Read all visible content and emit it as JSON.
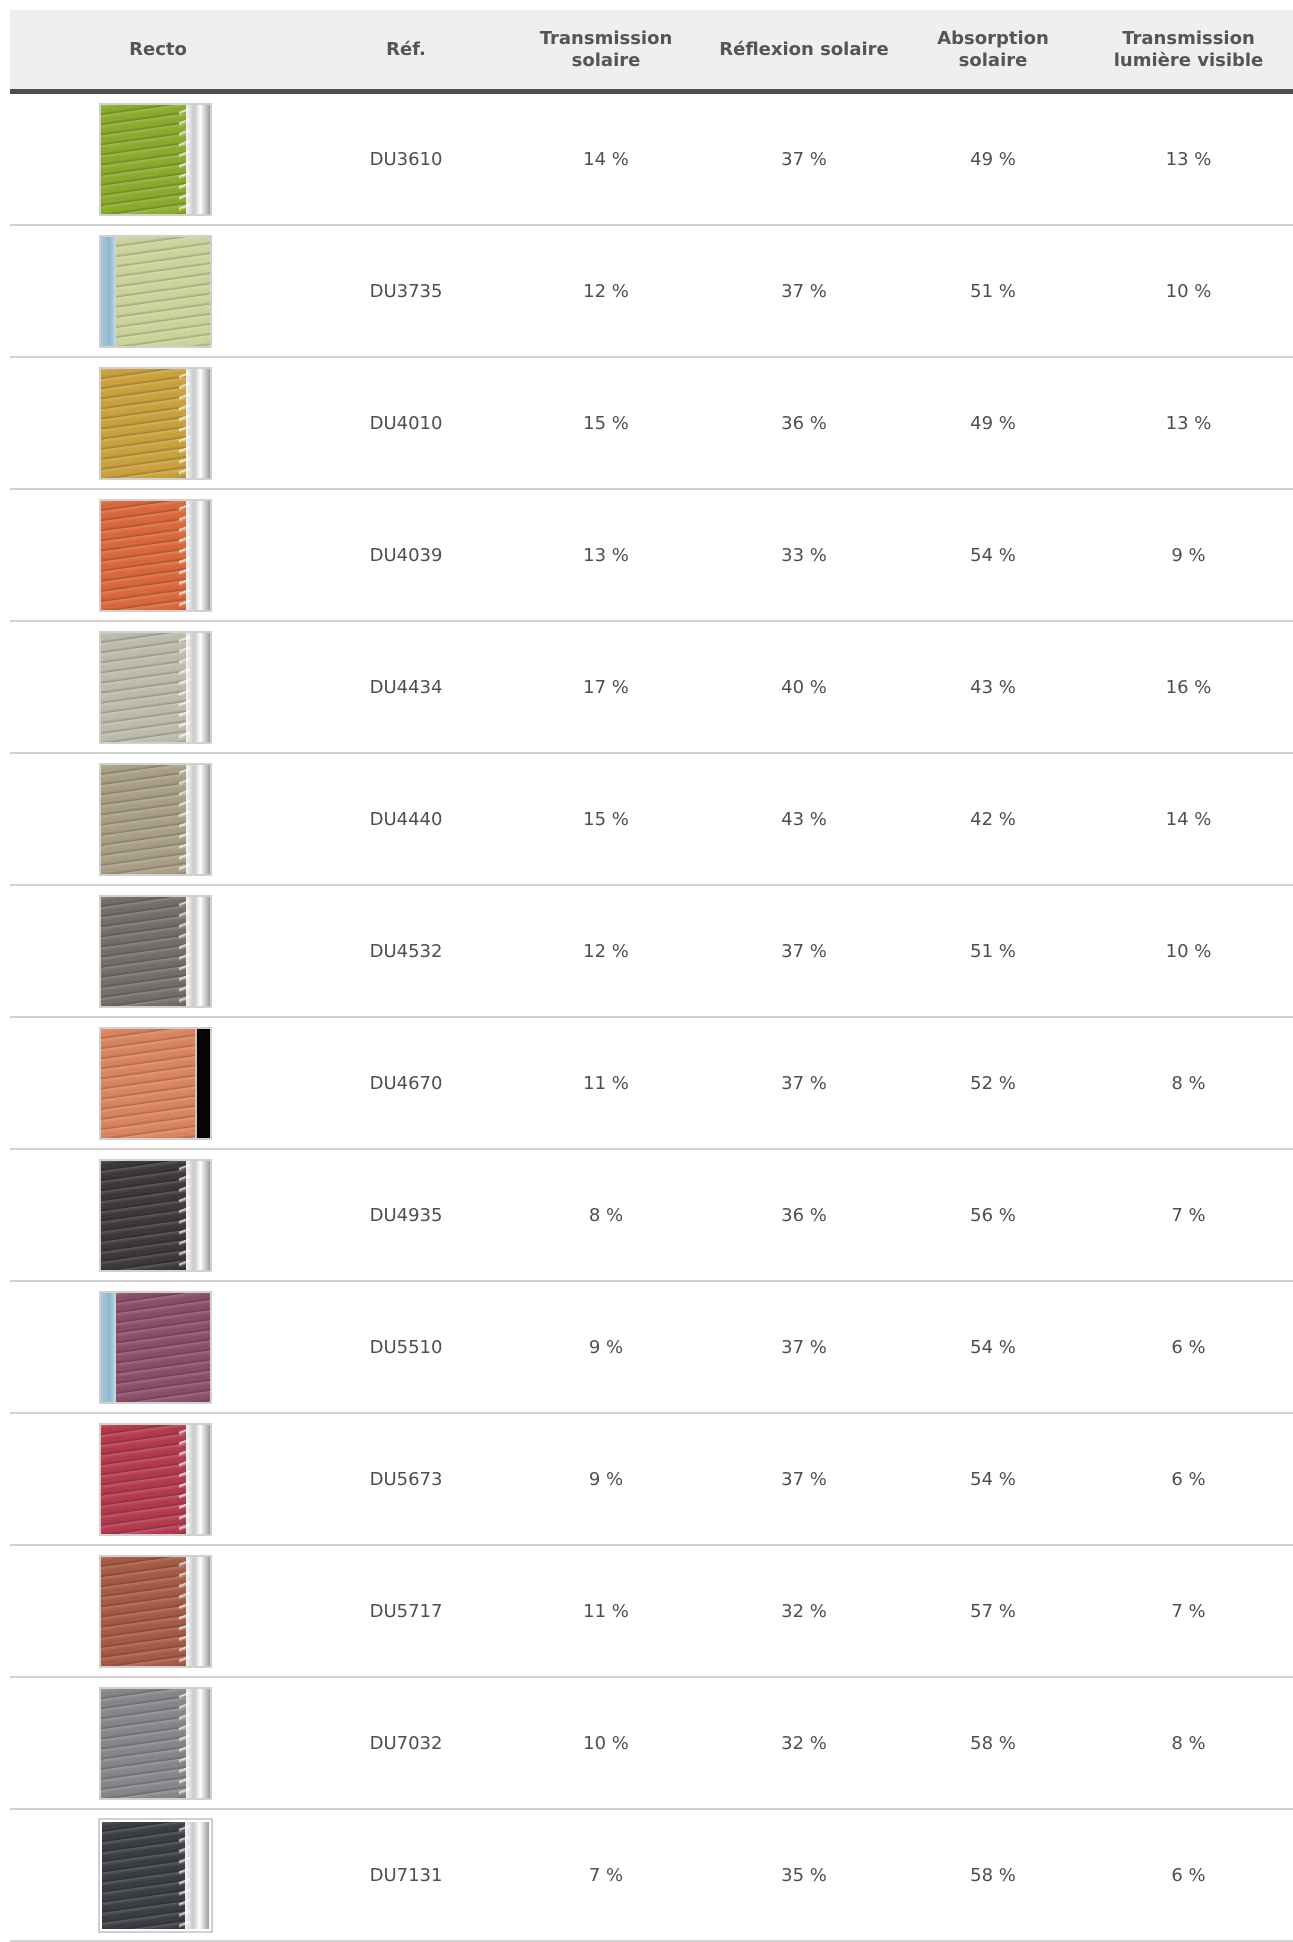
{
  "table": {
    "headers": {
      "recto": "Recto",
      "ref": "Réf.",
      "transmission_solaire": "Transmission solaire",
      "reflexion_solaire": "Réflexion solaire",
      "absorption_solaire": "Absorption solaire",
      "transmission_lumiere_visible": "Transmission lumière visible"
    },
    "rows": [
      {
        "ref": "DU3610",
        "ts": "14 %",
        "rs": "37 %",
        "as": "49 %",
        "tlv": "13 %",
        "swatch_color": "#8aaa2c",
        "swatch_style": "silver-back"
      },
      {
        "ref": "DU3735",
        "ts": "12 %",
        "rs": "37 %",
        "as": "51 %",
        "tlv": "10 %",
        "swatch_color": "#c9d39a",
        "swatch_style": "blue-left"
      },
      {
        "ref": "DU4010",
        "ts": "15 %",
        "rs": "36 %",
        "as": "49 %",
        "tlv": "13 %",
        "swatch_color": "#c9a03c",
        "swatch_style": "silver-back"
      },
      {
        "ref": "DU4039",
        "ts": "13 %",
        "rs": "33 %",
        "as": "54 %",
        "tlv": "9 %",
        "swatch_color": "#d9673a",
        "swatch_style": "silver-back"
      },
      {
        "ref": "DU4434",
        "ts": "17 %",
        "rs": "40 %",
        "as": "43 %",
        "tlv": "16 %",
        "swatch_color": "#bdbaaa",
        "swatch_style": "silver-back"
      },
      {
        "ref": "DU4440",
        "ts": "15 %",
        "rs": "43 %",
        "as": "42 %",
        "tlv": "14 %",
        "swatch_color": "#a89e84",
        "swatch_style": "silver-back"
      },
      {
        "ref": "DU4532",
        "ts": "12 %",
        "rs": "37 %",
        "as": "51 %",
        "tlv": "10 %",
        "swatch_color": "#736e6a",
        "swatch_style": "silver-back"
      },
      {
        "ref": "DU4670",
        "ts": "11 %",
        "rs": "37 %",
        "as": "52 %",
        "tlv": "8 %",
        "swatch_color": "#d9845e",
        "swatch_style": "black-back"
      },
      {
        "ref": "DU4935",
        "ts": "8 %",
        "rs": "36 %",
        "as": "56 %",
        "tlv": "7 %",
        "swatch_color": "#3e3838",
        "swatch_style": "silver-back"
      },
      {
        "ref": "DU5510",
        "ts": "9 %",
        "rs": "37 %",
        "as": "54 %",
        "tlv": "6 %",
        "swatch_color": "#8b4e68",
        "swatch_style": "blue-left"
      },
      {
        "ref": "DU5673",
        "ts": "9 %",
        "rs": "37 %",
        "as": "54 %",
        "tlv": "6 %",
        "swatch_color": "#b33a4d",
        "swatch_style": "silver-back"
      },
      {
        "ref": "DU5717",
        "ts": "11 %",
        "rs": "32 %",
        "as": "57 %",
        "tlv": "7 %",
        "swatch_color": "#a55a45",
        "swatch_style": "silver-back"
      },
      {
        "ref": "DU7032",
        "ts": "10 %",
        "rs": "32 %",
        "as": "58 %",
        "tlv": "8 %",
        "swatch_color": "#86868a",
        "swatch_style": "silver-back"
      },
      {
        "ref": "DU7131",
        "ts": "7 %",
        "rs": "35 %",
        "as": "58 %",
        "tlv": "6 %",
        "swatch_color": "#3a3d42",
        "swatch_style": "framed"
      }
    ]
  }
}
